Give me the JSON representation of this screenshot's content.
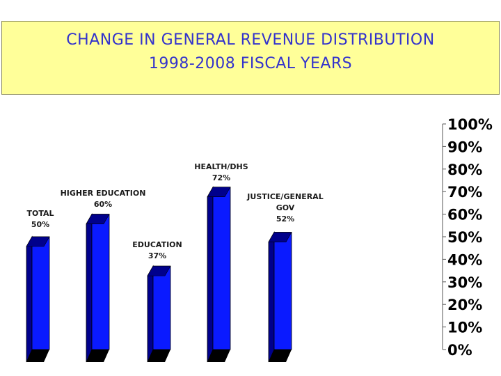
{
  "colors": {
    "title_background": "#ffff99",
    "title_text": "#3333cc",
    "bar_front": "#0a1aff",
    "bar_side": "#00008b",
    "bar_base": "#000000"
  },
  "chart_data": {
    "type": "bar",
    "title": "CHANGE IN GENERAL REVENUE DISTRIBUTION",
    "subtitle": "1998-2008 FISCAL YEARS",
    "categories": [
      "TOTAL",
      "HIGHER EDUCATION",
      "EDUCATION",
      "HEALTH/DHS",
      "JUSTICE/GENERAL GOV"
    ],
    "category_label_lines": [
      [
        "TOTAL"
      ],
      [
        "HIGHER EDUCATION"
      ],
      [
        "EDUCATION"
      ],
      [
        "HEALTH/DHS"
      ],
      [
        "JUSTICE/GENERAL",
        "GOV"
      ]
    ],
    "values": [
      50,
      60,
      37,
      72,
      52
    ],
    "value_labels": [
      "50%",
      "60%",
      "37%",
      "72%",
      "52%"
    ],
    "y_ticks": [
      "0%",
      "10%",
      "20%",
      "30%",
      "40%",
      "50%",
      "60%",
      "70%",
      "80%",
      "90%",
      "100%"
    ],
    "ylim": [
      0,
      100
    ],
    "y_axis_side": "right",
    "grid": false,
    "legend": "none",
    "style": "3d"
  }
}
